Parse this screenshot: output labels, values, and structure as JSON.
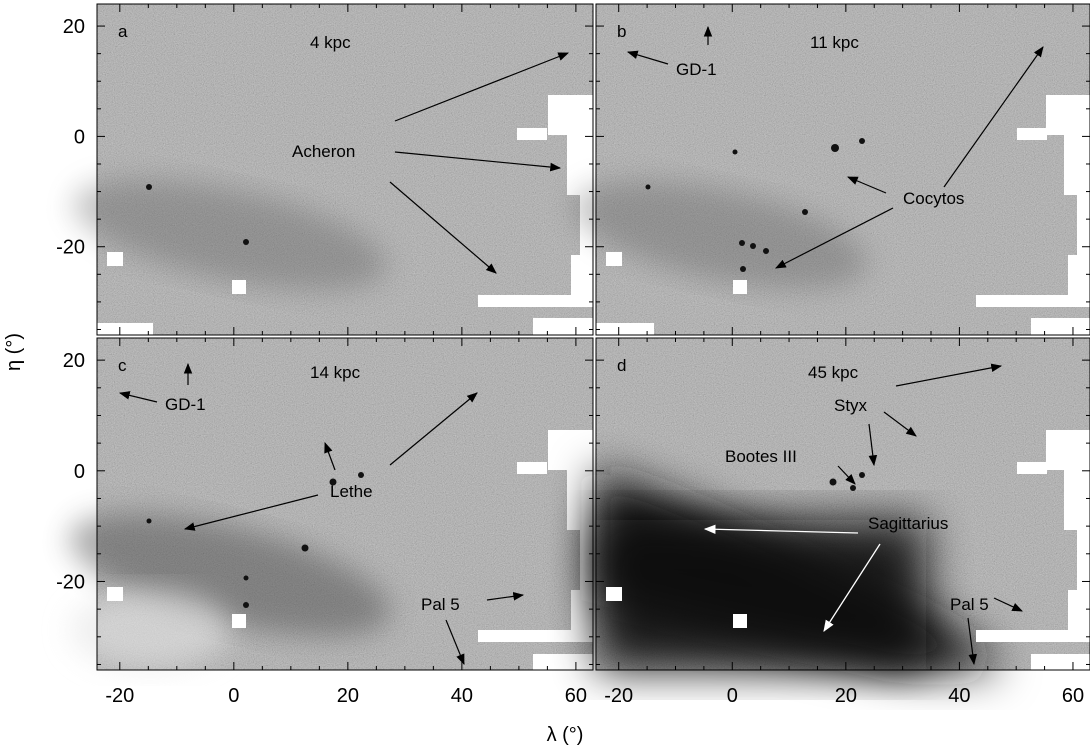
{
  "figure": {
    "xlabel": "λ (°)",
    "ylabel": "η (°)",
    "x_tick_labels": [
      "-20",
      "0",
      "20",
      "40",
      "60"
    ],
    "y_tick_labels": [
      "20",
      "0",
      "-20"
    ],
    "colors": {
      "background": "#ffffff",
      "map_mid": "#a6a6a6",
      "map_dark": "#1a1a1a",
      "map_light": "#dcdcdc",
      "annotation_arrow": "#000000",
      "sagittarius_arrow": "#ffffff"
    }
  },
  "chart_data": [
    {
      "type": "heatmap",
      "panel": "a",
      "distance": "4 kpc",
      "xlim": [
        -24,
        63
      ],
      "ylim": [
        -36,
        24
      ],
      "annotations": [
        {
          "name": "Acheron",
          "points_to": [
            [
              58,
              16
            ],
            [
              57,
              -6
            ],
            [
              46,
              -25
            ]
          ],
          "anchor": [
            16,
            -3
          ]
        }
      ]
    },
    {
      "type": "heatmap",
      "panel": "b",
      "distance": "11 kpc",
      "xlim": [
        -24,
        63
      ],
      "ylim": [
        -36,
        24
      ],
      "annotations": [
        {
          "name": "GD-1",
          "points_to": [
            [
              -20,
              15
            ],
            [
              -5,
              20
            ]
          ],
          "anchor": [
            -3,
            11
          ]
        },
        {
          "name": "Cocytos",
          "points_to": [
            [
              55,
              17
            ],
            [
              10,
              -7
            ],
            [
              7,
              -24
            ]
          ],
          "anchor": [
            29,
            -10
          ]
        }
      ]
    },
    {
      "type": "heatmap",
      "panel": "c",
      "distance": "14 kpc",
      "xlim": [
        -24,
        63
      ],
      "ylim": [
        -36,
        24
      ],
      "annotations": [
        {
          "name": "GD-1",
          "points_to": [
            [
              -22,
              14
            ],
            [
              -8,
              20
            ]
          ],
          "anchor": [
            -12,
            12
          ]
        },
        {
          "name": "Lethe",
          "points_to": [
            [
              40,
              14
            ],
            [
              17,
              5
            ],
            [
              -8,
              -10
            ]
          ],
          "anchor": [
            20,
            -4
          ]
        },
        {
          "name": "Pal 5",
          "points_to": [
            [
              51,
              -23
            ],
            [
              42,
              -36
            ]
          ],
          "anchor": [
            40,
            -25
          ]
        }
      ]
    },
    {
      "type": "heatmap",
      "panel": "d",
      "distance": "45 kpc",
      "xlim": [
        -24,
        63
      ],
      "ylim": [
        -36,
        24
      ],
      "annotations": [
        {
          "name": "Styx",
          "points_to": [
            [
              48,
              19
            ],
            [
              32,
              -4
            ],
            [
              24,
              0
            ]
          ],
          "anchor": [
            20,
            9
          ]
        },
        {
          "name": "Bootes III",
          "points_to": [
            [
              19,
              -2
            ]
          ],
          "anchor": [
            7,
            -3
          ]
        },
        {
          "name": "Sagittarius",
          "points_to": [
            [
              -5,
              -11
            ],
            [
              15,
              -27
            ]
          ],
          "anchor": [
            23,
            -11
          ]
        },
        {
          "name": "Pal 5",
          "points_to": [
            [
              53,
              -26
            ],
            [
              42,
              -35
            ]
          ],
          "anchor": [
            42,
            -23
          ]
        }
      ]
    }
  ]
}
